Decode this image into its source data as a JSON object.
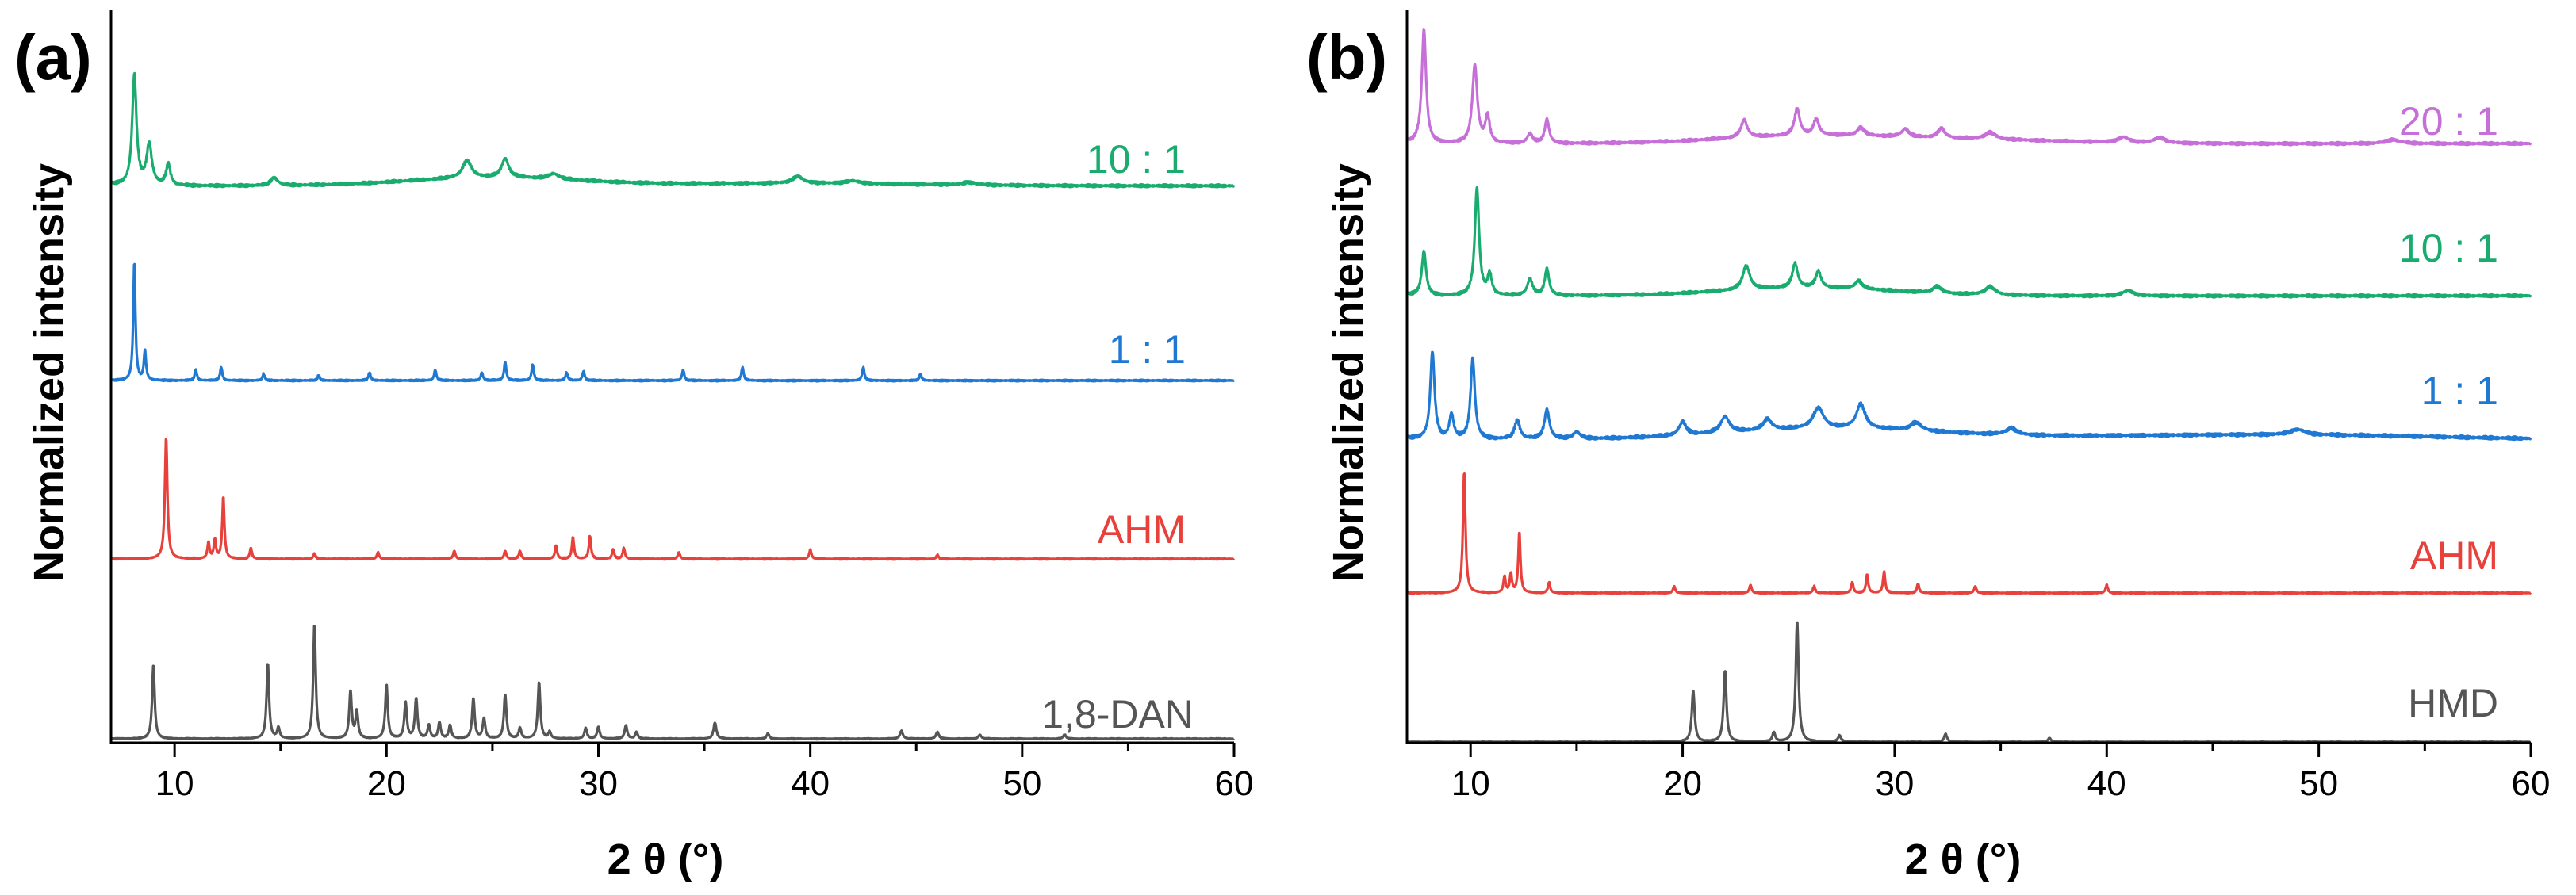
{
  "colors": {
    "green": "#1aab6f",
    "blue": "#1f78d1",
    "red": "#e8413c",
    "gray": "#555555",
    "purple": "#c76fd8",
    "axis": "#000000"
  },
  "chart_data": [
    {
      "type": "line",
      "panel_label": "(a)",
      "xlabel": "2 θ (°)",
      "ylabel": "Normalized intensity",
      "xlim": [
        7,
        60
      ],
      "xticks": [
        10,
        20,
        30,
        40,
        50,
        60
      ],
      "xtick_labels": [
        "10",
        "20",
        "30",
        "40",
        "50",
        "60"
      ],
      "y_ticks_shown": false,
      "series": [
        {
          "name": "10 : 1",
          "color": "green",
          "offset": 3.0,
          "baseline": 0.05,
          "noise": 0.012,
          "humps": [
            [
              25,
              0.06,
              4
            ],
            [
              39,
              0.02,
              6
            ]
          ],
          "peaks": [
            [
              8.1,
              0.82,
              0.12
            ],
            [
              8.8,
              0.3,
              0.15
            ],
            [
              9.7,
              0.16,
              0.12
            ],
            [
              14.7,
              0.06,
              0.2
            ],
            [
              23.8,
              0.13,
              0.25
            ],
            [
              25.6,
              0.14,
              0.2
            ],
            [
              27.9,
              0.04,
              0.3
            ],
            [
              39.4,
              0.05,
              0.3
            ],
            [
              42.0,
              0.02,
              0.4
            ],
            [
              47.5,
              0.02,
              0.4
            ]
          ]
        },
        {
          "name": "1 : 1",
          "color": "blue",
          "offset": 2.0,
          "baseline": 0.0,
          "noise": 0.006,
          "humps": [],
          "peaks": [
            [
              8.1,
              0.88,
              0.06
            ],
            [
              8.6,
              0.22,
              0.06
            ],
            [
              11.0,
              0.08,
              0.06
            ],
            [
              12.2,
              0.1,
              0.06
            ],
            [
              14.2,
              0.05,
              0.06
            ],
            [
              16.8,
              0.04,
              0.06
            ],
            [
              19.2,
              0.06,
              0.06
            ],
            [
              22.3,
              0.08,
              0.06
            ],
            [
              24.5,
              0.06,
              0.06
            ],
            [
              25.6,
              0.14,
              0.06
            ],
            [
              26.9,
              0.12,
              0.06
            ],
            [
              28.5,
              0.06,
              0.06
            ],
            [
              29.3,
              0.07,
              0.06
            ],
            [
              34.0,
              0.08,
              0.06
            ],
            [
              36.8,
              0.1,
              0.06
            ],
            [
              42.5,
              0.1,
              0.06
            ],
            [
              45.2,
              0.05,
              0.06
            ]
          ]
        },
        {
          "name": "AHM",
          "color": "red",
          "offset": 1.0,
          "baseline": 0.0,
          "noise": 0.005,
          "humps": [],
          "peaks": [
            [
              9.6,
              0.9,
              0.07
            ],
            [
              11.6,
              0.12,
              0.06
            ],
            [
              11.9,
              0.14,
              0.06
            ],
            [
              12.3,
              0.46,
              0.06
            ],
            [
              13.6,
              0.08,
              0.06
            ],
            [
              16.6,
              0.04,
              0.06
            ],
            [
              19.6,
              0.05,
              0.06
            ],
            [
              23.2,
              0.06,
              0.06
            ],
            [
              25.6,
              0.06,
              0.06
            ],
            [
              26.3,
              0.06,
              0.06
            ],
            [
              28.0,
              0.1,
              0.06
            ],
            [
              28.8,
              0.16,
              0.06
            ],
            [
              29.6,
              0.17,
              0.06
            ],
            [
              30.7,
              0.07,
              0.06
            ],
            [
              31.2,
              0.08,
              0.06
            ],
            [
              33.8,
              0.05,
              0.06
            ],
            [
              40.0,
              0.07,
              0.06
            ],
            [
              46.0,
              0.03,
              0.06
            ]
          ]
        },
        {
          "name": "1,8-DAN",
          "color": "gray",
          "offset": 0.0,
          "baseline": 0.0,
          "noise": 0.004,
          "humps": [],
          "peaks": [
            [
              9.0,
              0.55,
              0.07
            ],
            [
              14.4,
              0.56,
              0.07
            ],
            [
              14.9,
              0.08,
              0.07
            ],
            [
              16.6,
              0.85,
              0.07
            ],
            [
              18.3,
              0.35,
              0.07
            ],
            [
              18.6,
              0.2,
              0.07
            ],
            [
              20.0,
              0.4,
              0.07
            ],
            [
              20.9,
              0.27,
              0.07
            ],
            [
              21.4,
              0.3,
              0.07
            ],
            [
              22.0,
              0.1,
              0.07
            ],
            [
              22.5,
              0.12,
              0.07
            ],
            [
              23.0,
              0.1,
              0.07
            ],
            [
              24.1,
              0.3,
              0.07
            ],
            [
              24.6,
              0.15,
              0.07
            ],
            [
              25.6,
              0.33,
              0.07
            ],
            [
              26.3,
              0.08,
              0.07
            ],
            [
              27.2,
              0.42,
              0.07
            ],
            [
              27.7,
              0.05,
              0.07
            ],
            [
              29.4,
              0.08,
              0.07
            ],
            [
              30.0,
              0.09,
              0.07
            ],
            [
              31.3,
              0.1,
              0.07
            ],
            [
              31.8,
              0.05,
              0.07
            ],
            [
              35.5,
              0.12,
              0.08
            ],
            [
              38.0,
              0.04,
              0.07
            ],
            [
              44.3,
              0.06,
              0.08
            ],
            [
              46.0,
              0.05,
              0.08
            ],
            [
              48.0,
              0.03,
              0.08
            ],
            [
              52.0,
              0.03,
              0.08
            ]
          ]
        }
      ]
    },
    {
      "type": "line",
      "panel_label": "(b)",
      "xlabel": "2 θ (°)",
      "ylabel": "Normalized intensity",
      "xlim": [
        7,
        60
      ],
      "xticks": [
        10,
        20,
        30,
        40,
        50,
        60
      ],
      "xtick_labels": [
        "10",
        "20",
        "30",
        "40",
        "50",
        "60"
      ],
      "y_ticks_shown": false,
      "series": [
        {
          "name": "20 : 1",
          "color": "purple",
          "offset": 4.0,
          "baseline": 0.04,
          "noise": 0.012,
          "humps": [
            [
              25.5,
              0.05,
              4
            ],
            [
              33,
              0.03,
              5
            ]
          ],
          "peaks": [
            [
              7.8,
              0.85,
              0.12
            ],
            [
              10.2,
              0.58,
              0.14
            ],
            [
              10.8,
              0.2,
              0.12
            ],
            [
              12.8,
              0.07,
              0.15
            ],
            [
              13.6,
              0.18,
              0.12
            ],
            [
              22.9,
              0.13,
              0.18
            ],
            [
              25.4,
              0.2,
              0.15
            ],
            [
              26.3,
              0.12,
              0.15
            ],
            [
              28.4,
              0.06,
              0.2
            ],
            [
              30.5,
              0.06,
              0.2
            ],
            [
              32.2,
              0.07,
              0.2
            ],
            [
              34.5,
              0.05,
              0.3
            ],
            [
              40.8,
              0.04,
              0.3
            ],
            [
              42.5,
              0.04,
              0.3
            ],
            [
              53.5,
              0.03,
              0.4
            ]
          ]
        },
        {
          "name": "10 : 1",
          "color": "green",
          "offset": 3.0,
          "baseline": 0.04,
          "noise": 0.012,
          "humps": [
            [
              26,
              0.06,
              4
            ]
          ],
          "peaks": [
            [
              7.8,
              0.33,
              0.12
            ],
            [
              10.3,
              0.8,
              0.12
            ],
            [
              10.9,
              0.15,
              0.12
            ],
            [
              12.8,
              0.12,
              0.15
            ],
            [
              13.6,
              0.2,
              0.12
            ],
            [
              23.0,
              0.18,
              0.2
            ],
            [
              25.3,
              0.18,
              0.15
            ],
            [
              26.4,
              0.12,
              0.15
            ],
            [
              28.3,
              0.06,
              0.2
            ],
            [
              32.0,
              0.05,
              0.25
            ],
            [
              34.5,
              0.06,
              0.3
            ],
            [
              41.0,
              0.04,
              0.3
            ]
          ]
        },
        {
          "name": "1 : 1",
          "color": "blue",
          "offset": 2.0,
          "baseline": 0.05,
          "noise": 0.014,
          "humps": [
            [
              27,
              0.08,
              5
            ],
            [
              40,
              0.02,
              6
            ],
            [
              50,
              0.03,
              6
            ]
          ],
          "peaks": [
            [
              8.2,
              0.65,
              0.12
            ],
            [
              9.1,
              0.18,
              0.12
            ],
            [
              10.1,
              0.6,
              0.12
            ],
            [
              12.2,
              0.14,
              0.15
            ],
            [
              13.6,
              0.22,
              0.14
            ],
            [
              15.0,
              0.05,
              0.2
            ],
            [
              20.0,
              0.1,
              0.2
            ],
            [
              22.0,
              0.12,
              0.25
            ],
            [
              24.0,
              0.08,
              0.25
            ],
            [
              26.4,
              0.15,
              0.3
            ],
            [
              28.4,
              0.18,
              0.25
            ],
            [
              31.0,
              0.06,
              0.3
            ],
            [
              35.5,
              0.05,
              0.3
            ],
            [
              49.0,
              0.04,
              0.4
            ]
          ]
        },
        {
          "name": "AHM",
          "color": "red",
          "offset": 1.0,
          "baseline": 0.0,
          "noise": 0.005,
          "humps": [],
          "peaks": [
            [
              9.7,
              0.9,
              0.07
            ],
            [
              11.6,
              0.12,
              0.06
            ],
            [
              11.9,
              0.14,
              0.06
            ],
            [
              12.3,
              0.45,
              0.06
            ],
            [
              13.7,
              0.08,
              0.06
            ],
            [
              19.6,
              0.05,
              0.06
            ],
            [
              23.2,
              0.06,
              0.06
            ],
            [
              26.2,
              0.05,
              0.06
            ],
            [
              28.0,
              0.08,
              0.06
            ],
            [
              28.7,
              0.14,
              0.06
            ],
            [
              29.5,
              0.16,
              0.06
            ],
            [
              31.1,
              0.07,
              0.06
            ],
            [
              33.8,
              0.05,
              0.06
            ],
            [
              40.0,
              0.06,
              0.06
            ]
          ]
        },
        {
          "name": "HMD",
          "color": "gray",
          "offset": 0.0,
          "baseline": 0.0,
          "noise": 0.003,
          "humps": [],
          "peaks": [
            [
              20.5,
              0.38,
              0.08
            ],
            [
              22.0,
              0.53,
              0.08
            ],
            [
              24.3,
              0.07,
              0.08
            ],
            [
              25.4,
              0.9,
              0.08
            ],
            [
              27.4,
              0.05,
              0.08
            ],
            [
              32.4,
              0.06,
              0.08
            ],
            [
              37.3,
              0.03,
              0.08
            ]
          ]
        }
      ]
    }
  ]
}
